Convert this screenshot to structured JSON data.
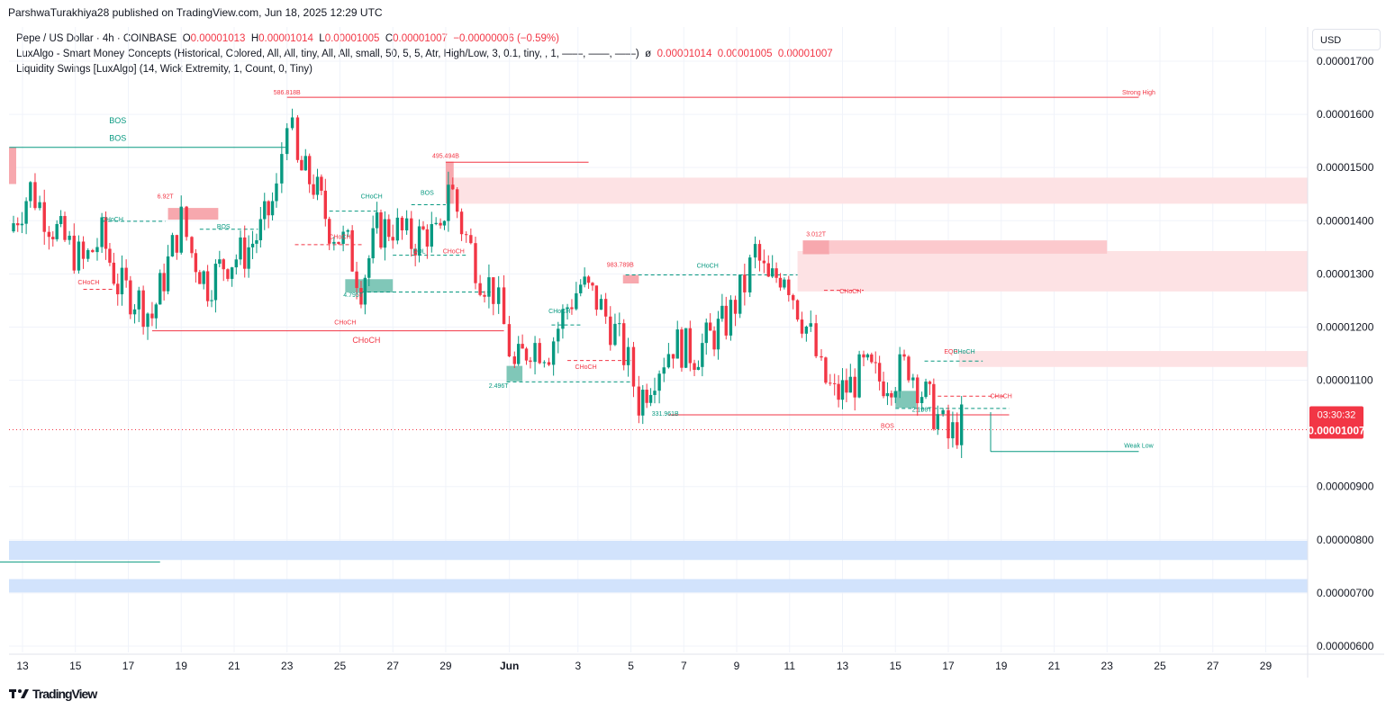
{
  "header": {
    "published": "ParshwaTurakhiya28 published on TradingView.com, Jun 18, 2025 12:29 UTC"
  },
  "legend": {
    "symbol": "Pepe / US Dollar · 4h · COINBASE",
    "o_label": "O",
    "o": "0.00001013",
    "h_label": "H",
    "h": "0.00001014",
    "l_label": "L",
    "l": "0.00001005",
    "c_label": "C",
    "c": "0.00001007",
    "change": "−0.00000006 (−0.59%)",
    "indicator1": "LuxAlgo - Smart Money Concepts (Historical, Colored, All, All, tiny, All, All, small, 50, 5, 5, Atr, High/Low, 3, 0.1, tiny, , 1, ——, ——, ——)",
    "indicator1_sym": "ø",
    "indicator1_v1": "0.00001014",
    "indicator1_v2": "0.00001005",
    "indicator1_v3": "0.00001007",
    "indicator2": "Liquidity Swings [LuxAlgo] (14, Wick Extremity, 1, Count, 0, Tiny)"
  },
  "currency_button": "USD",
  "price_badge": {
    "countdown": "03:30:32",
    "price": "0.00001007",
    "color": "#f23645"
  },
  "footer": {
    "brand": "TradingView",
    "logo_icon": "tradingview-logo-icon"
  },
  "colors": {
    "up": "#089981",
    "down": "#f23645",
    "bear_zone": "#fde2e4",
    "bull_zone": "#d2e3fc"
  },
  "chart_data": {
    "type": "candlestick",
    "title": "Pepe / US Dollar · 4h · COINBASE",
    "y_unit": "USD",
    "ylim": [
      5.9e-06,
      1.78e-05
    ],
    "y_ticks": [
      "0.00001700",
      "0.00001600",
      "0.00001500",
      "0.00001400",
      "0.00001300",
      "0.00001200",
      "0.00001100",
      "0.00000900",
      "0.00000800",
      "0.00000700",
      "0.00000600"
    ],
    "x_ticks": [
      "13",
      "15",
      "17",
      "19",
      "21",
      "23",
      "25",
      "27",
      "29",
      "Jun",
      "3",
      "5",
      "7",
      "9",
      "11",
      "13",
      "15",
      "17",
      "19",
      "21",
      "23",
      "25",
      "27",
      "29"
    ],
    "grid": true,
    "last_price": 1.007e-05,
    "swing_path": [
      [
        12.5,
        1.38e-05
      ],
      [
        13.3,
        1.46e-05
      ],
      [
        14.0,
        1.4e-05
      ],
      [
        14.6,
        1.36e-05
      ],
      [
        15.3,
        1.32e-05
      ],
      [
        16.0,
        1.37e-05
      ],
      [
        16.6,
        1.28e-05
      ],
      [
        17.4,
        1.25e-05
      ],
      [
        17.9,
        1.22e-05
      ],
      [
        18.5,
        1.32e-05
      ],
      [
        19.0,
        1.4e-05
      ],
      [
        19.4,
        1.34e-05
      ],
      [
        20.0,
        1.28e-05
      ],
      [
        20.6,
        1.32e-05
      ],
      [
        21.4,
        1.34e-05
      ],
      [
        22.0,
        1.38e-05
      ],
      [
        22.6,
        1.45e-05
      ],
      [
        23.0,
        1.61e-05
      ],
      [
        23.4,
        1.5e-05
      ],
      [
        24.0,
        1.47e-05
      ],
      [
        24.6,
        1.39e-05
      ],
      [
        25.3,
        1.35e-05
      ],
      [
        25.8,
        1.28e-05
      ],
      [
        26.4,
        1.38e-05
      ],
      [
        27.0,
        1.39e-05
      ],
      [
        27.7,
        1.36e-05
      ],
      [
        28.3,
        1.38e-05
      ],
      [
        28.8,
        1.36e-05
      ],
      [
        29.1,
        1.48e-05
      ],
      [
        29.6,
        1.39e-05
      ],
      [
        30.3,
        1.3e-05
      ],
      [
        30.8,
        1.27e-05
      ],
      [
        31.2,
        1.2e-05
      ],
      [
        31.6,
        1.12e-05
      ],
      [
        32.2,
        1.17e-05
      ],
      [
        32.9,
        1.16e-05
      ],
      [
        33.6,
        1.24e-05
      ],
      [
        34.1,
        1.28e-05
      ],
      [
        34.7,
        1.25e-05
      ],
      [
        35.4,
        1.19e-05
      ],
      [
        35.9,
        1.13e-05
      ],
      [
        36.3,
        1.06e-05
      ],
      [
        36.9,
        1.12e-05
      ],
      [
        37.6,
        1.17e-05
      ],
      [
        38.4,
        1.15e-05
      ],
      [
        39.0,
        1.18e-05
      ],
      [
        39.6,
        1.21e-05
      ],
      [
        40.3,
        1.28e-05
      ],
      [
        40.7,
        1.34e-05
      ],
      [
        41.2,
        1.28e-05
      ],
      [
        41.8,
        1.31e-05
      ],
      [
        42.3,
        1.24e-05
      ],
      [
        42.8,
        1.18e-05
      ],
      [
        43.2,
        1.11e-05
      ],
      [
        43.7,
        1.07e-05
      ],
      [
        44.3,
        1.09e-05
      ],
      [
        44.8,
        1.12e-05
      ],
      [
        45.4,
        1.1e-05
      ],
      [
        46.0,
        1.11e-05
      ],
      [
        46.5,
        1.13e-05
      ],
      [
        47.0,
        1.08e-05
      ],
      [
        47.6,
        1.03e-05
      ],
      [
        48.0,
        9.9e-06
      ],
      [
        48.5,
        1.02e-05
      ]
    ],
    "annotations": [
      {
        "text": "586.818B",
        "x": 23.0,
        "y": 1.637e-05,
        "color": "#f23645"
      },
      {
        "text": "Strong High",
        "x": 55.2,
        "y": 1.637e-05,
        "color": "#f23645"
      },
      {
        "text": "495.494B",
        "x": 29.0,
        "y": 1.518e-05,
        "color": "#f23645"
      },
      {
        "text": "6.92T",
        "x": 18.4,
        "y": 1.442e-05,
        "color": "#f23645"
      },
      {
        "text": "3.012T",
        "x": 43.0,
        "y": 1.371e-05,
        "color": "#f23645"
      },
      {
        "text": "983.789B",
        "x": 35.6,
        "y": 1.313e-05,
        "color": "#f23645"
      },
      {
        "text": "4.795T",
        "x": 25.5,
        "y": 1.257e-05,
        "color": "#089981"
      },
      {
        "text": "2.496T",
        "x": 31.0,
        "y": 1.086e-05,
        "color": "#089981"
      },
      {
        "text": "331.961B",
        "x": 37.3,
        "y": 1.033e-05,
        "color": "#089981"
      },
      {
        "text": "2.166T",
        "x": 47.0,
        "y": 1.041e-05,
        "color": "#089981"
      },
      {
        "text": "Weak Low",
        "x": 55.2,
        "y": 9.73e-06,
        "color": "#089981"
      },
      {
        "text": "BOS",
        "x": 16.6,
        "y": 1.583e-05,
        "color": "#089981"
      },
      {
        "text": "CHoCH",
        "x": 16.4,
        "y": 1.399e-05,
        "color": "#089981"
      },
      {
        "text": "BOS",
        "x": 20.6,
        "y": 1.385e-05,
        "color": "#089981"
      },
      {
        "text": "CHoCH",
        "x": 15.5,
        "y": 1.28e-05,
        "color": "#f23645"
      },
      {
        "text": "CHoCH",
        "x": 25.2,
        "y": 1.205e-05,
        "color": "#f23645"
      },
      {
        "text": "CHoCH",
        "x": 26.2,
        "y": 1.442e-05,
        "color": "#089981"
      },
      {
        "text": "BOS",
        "x": 28.3,
        "y": 1.449e-05,
        "color": "#089981"
      },
      {
        "text": "CHoCH",
        "x": 25.0,
        "y": 1.366e-05,
        "color": "#f23645"
      },
      {
        "text": "EQL",
        "x": 28.0,
        "y": 1.339e-05,
        "color": "#089981"
      },
      {
        "text": "CHoCH",
        "x": 29.3,
        "y": 1.339e-05,
        "color": "#f23645"
      },
      {
        "text": "CHoCH",
        "x": 38.9,
        "y": 1.312e-05,
        "color": "#089981"
      },
      {
        "text": "CHoCH",
        "x": 33.3,
        "y": 1.226e-05,
        "color": "#089981"
      },
      {
        "text": "CHoCH",
        "x": 34.3,
        "y": 1.121e-05,
        "color": "#f23645"
      },
      {
        "text": "CHoCH",
        "x": 44.3,
        "y": 1.263e-05,
        "color": "#f23645"
      },
      {
        "text": "EQH",
        "x": 48.1,
        "y": 1.15e-05,
        "color": "#f23645"
      },
      {
        "text": "CHoCH",
        "x": 48.6,
        "y": 1.15e-05,
        "color": "#089981"
      },
      {
        "text": "CHoCH",
        "x": 50.0,
        "y": 1.066e-05,
        "color": "#f23645"
      },
      {
        "text": "BOS",
        "x": 45.7,
        "y": 1.01e-05,
        "color": "#f23645"
      }
    ]
  }
}
